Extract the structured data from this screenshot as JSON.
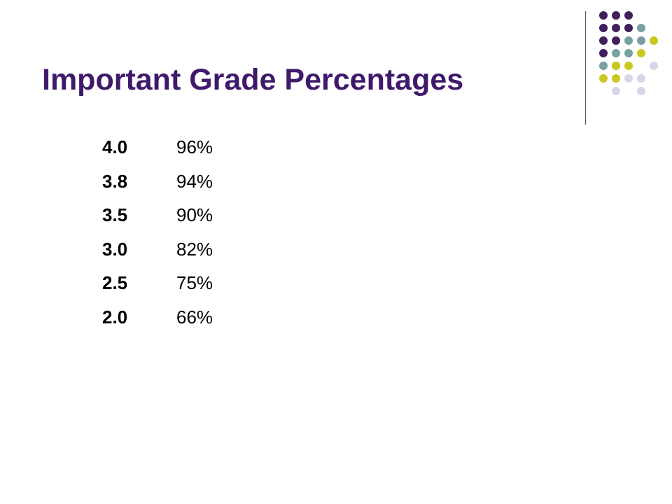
{
  "slide": {
    "title": "Important Grade Percentages"
  },
  "grades": [
    {
      "gpa": "4.0",
      "percent": "96%"
    },
    {
      "gpa": "3.8",
      "percent": "94%"
    },
    {
      "gpa": "3.5",
      "percent": "90%"
    },
    {
      "gpa": "3.0",
      "percent": "82%"
    },
    {
      "gpa": "2.5",
      "percent": "75%"
    },
    {
      "gpa": "2.0",
      "percent": "66%"
    }
  ],
  "colors": {
    "title": "#3f1a6b",
    "dot_purple": "#42205f",
    "dot_teal": "#77a0a0",
    "dot_lime": "#c8c81e",
    "dot_lavender": "#d6d6ea",
    "divider": "#555555"
  },
  "decoration": {
    "icon": "dot-grid-icon"
  }
}
